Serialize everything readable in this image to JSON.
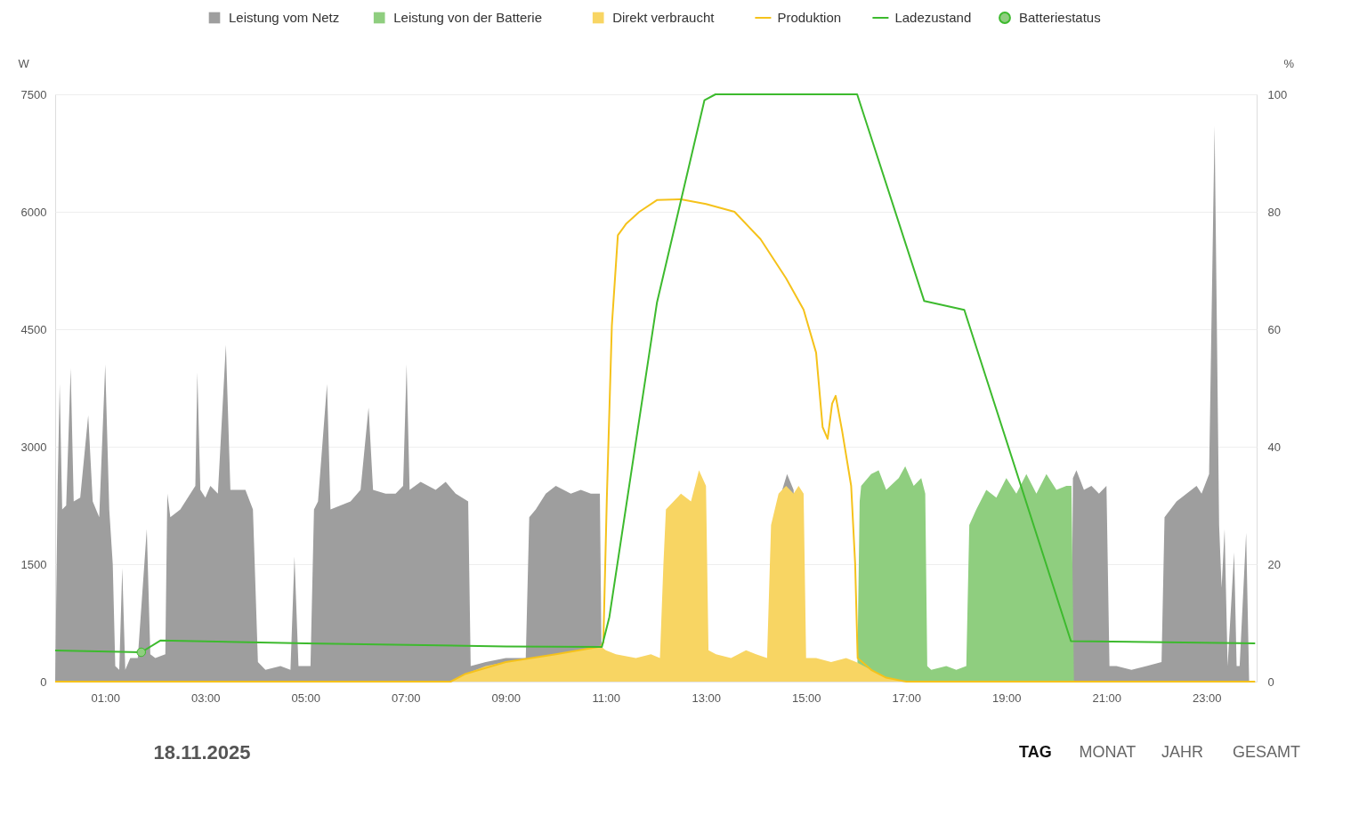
{
  "chart_data": {
    "type": "area",
    "ylabel": "W",
    "y2label": "%",
    "legend": "top",
    "grid": "y",
    "xlim": [
      0,
      24
    ],
    "xticks": [
      {
        "value": 1,
        "label": "01:00"
      },
      {
        "value": 3,
        "label": "03:00"
      },
      {
        "value": 5,
        "label": "05:00"
      },
      {
        "value": 7,
        "label": "07:00"
      },
      {
        "value": 9,
        "label": "09:00"
      },
      {
        "value": 11,
        "label": "11:00"
      },
      {
        "value": 13,
        "label": "13:00"
      },
      {
        "value": 15,
        "label": "15:00"
      },
      {
        "value": 17,
        "label": "17:00"
      },
      {
        "value": 19,
        "label": "19:00"
      },
      {
        "value": 21,
        "label": "21:00"
      },
      {
        "value": 23,
        "label": "23:00"
      }
    ],
    "ylim": [
      0,
      7500
    ],
    "yticks": [
      0,
      1500,
      3000,
      4500,
      6000,
      7500
    ],
    "y2lim": [
      0,
      100
    ],
    "y2ticks": [
      0,
      20,
      40,
      60,
      80,
      100
    ],
    "annotations": [
      "18.11.2025",
      "TAG",
      "MONAT",
      "JAHR",
      "GESAMT"
    ],
    "series": [
      {
        "name": "Leistung vom Netz",
        "color": "#9e9e9e",
        "x": [
          0,
          0.05,
          0.09,
          0.14,
          0.22,
          0.31,
          0.37,
          0.5,
          0.66,
          0.75,
          0.88,
          1.0,
          1.08,
          1.15,
          1.2,
          1.28,
          1.34,
          1.4,
          1.5,
          1.65,
          1.83,
          1.9,
          2.0,
          2.2,
          2.24,
          2.3,
          2.5,
          2.65,
          2.8,
          2.84,
          2.9,
          3.0,
          3.1,
          3.25,
          3.41,
          3.5,
          3.8,
          3.95,
          4.05,
          4.2,
          4.5,
          4.7,
          4.78,
          4.86,
          5.1,
          5.17,
          5.25,
          5.43,
          5.5,
          5.7,
          5.9,
          6.1,
          6.26,
          6.35,
          6.6,
          6.8,
          6.95,
          7.02,
          7.08,
          7.3,
          7.6,
          7.8,
          8.0,
          8.25,
          8.3,
          8.6,
          9.0,
          9.4,
          9.47,
          9.6,
          9.8,
          10.0,
          10.3,
          10.5,
          10.7,
          10.88,
          10.92,
          14.4,
          14.5,
          14.62,
          14.75,
          14.85,
          20.3,
          20.33,
          20.4,
          20.55,
          20.7,
          20.85,
          21.0,
          21.06,
          21.2,
          21.5,
          21.8,
          22.1,
          22.16,
          22.4,
          22.6,
          22.8,
          22.9,
          23.05,
          23.16,
          23.25,
          23.3,
          23.36,
          23.42,
          23.55,
          23.6,
          23.66,
          23.79,
          23.85
        ],
        "values": [
          0,
          2500,
          3800,
          2200,
          2250,
          4000,
          2300,
          2350,
          3400,
          2300,
          2100,
          4050,
          2200,
          1500,
          200,
          150,
          1450,
          150,
          300,
          300,
          1950,
          350,
          300,
          350,
          2400,
          2100,
          2200,
          2350,
          2500,
          3950,
          2450,
          2350,
          2500,
          2400,
          4300,
          2450,
          2450,
          2200,
          250,
          150,
          200,
          150,
          1600,
          200,
          200,
          2200,
          2300,
          3800,
          2200,
          2250,
          2300,
          2450,
          3500,
          2450,
          2400,
          2400,
          2500,
          4050,
          2450,
          2550,
          2450,
          2550,
          2400,
          2300,
          200,
          250,
          300,
          300,
          2100,
          2200,
          2400,
          2500,
          2400,
          2450,
          2400,
          2400,
          0,
          0,
          2400,
          2650,
          2450,
          0,
          0,
          2600,
          2700,
          2450,
          2500,
          2400,
          2500,
          200,
          200,
          150,
          200,
          250,
          2100,
          2300,
          2400,
          2500,
          2400,
          2650,
          7100,
          2000,
          1200,
          1950,
          200,
          1650,
          200,
          200,
          1900,
          0
        ]
      },
      {
        "name": "Leistung von der Batterie",
        "color": "#8fce7f",
        "x": [
          16.02,
          16.07,
          16.1,
          16.3,
          16.45,
          16.6,
          16.85,
          16.98,
          17.15,
          17.3,
          17.38,
          17.42,
          17.5,
          17.8,
          18.0,
          18.2,
          18.26,
          18.4,
          18.6,
          18.8,
          19.0,
          19.2,
          19.4,
          19.6,
          19.8,
          20.0,
          20.2,
          20.3,
          20.35
        ],
        "values": [
          0,
          2300,
          2500,
          2650,
          2700,
          2450,
          2600,
          2750,
          2500,
          2600,
          2400,
          200,
          150,
          200,
          150,
          200,
          2000,
          2200,
          2450,
          2350,
          2600,
          2400,
          2650,
          2400,
          2650,
          2450,
          2500,
          2500,
          0
        ]
      },
      {
        "name": "Direkt verbraucht",
        "color": "#f8d563",
        "x": [
          7.9,
          8.2,
          8.6,
          9.0,
          9.5,
          10.0,
          10.5,
          10.9,
          11.0,
          11.2,
          11.6,
          11.9,
          12.08,
          12.15,
          12.2,
          12.5,
          12.7,
          12.86,
          13.0,
          13.05,
          13.2,
          13.5,
          13.8,
          14.0,
          14.22,
          14.3,
          14.45,
          14.6,
          14.75,
          14.85,
          14.95,
          15.0,
          15.2,
          15.5,
          15.8,
          16.0,
          16.3,
          16.6,
          17.0
        ],
        "values": [
          0,
          100,
          200,
          250,
          300,
          350,
          400,
          450,
          400,
          350,
          300,
          350,
          300,
          1500,
          2200,
          2400,
          2300,
          2700,
          2500,
          400,
          350,
          300,
          400,
          350,
          300,
          2000,
          2400,
          2500,
          2400,
          2500,
          2400,
          300,
          300,
          250,
          300,
          250,
          150,
          50,
          0
        ]
      },
      {
        "name": "Produktion",
        "type": "line",
        "color": "#f5c21b",
        "x": [
          0,
          7.9,
          8.2,
          9.0,
          10.0,
          10.9,
          10.95,
          11.02,
          11.12,
          11.24,
          11.41,
          11.67,
          12.02,
          12.5,
          13.0,
          13.57,
          14.09,
          14.6,
          14.95,
          15.2,
          15.33,
          15.43,
          15.52,
          15.59,
          15.72,
          15.9,
          15.98,
          16.03,
          16.3,
          16.6,
          17.0,
          23.97
        ],
        "values": [
          0,
          0,
          100,
          250,
          350,
          450,
          500,
          2350,
          4550,
          5700,
          5850,
          6000,
          6150,
          6160,
          6100,
          6000,
          5650,
          5150,
          4750,
          4200,
          3250,
          3100,
          3550,
          3650,
          3200,
          2500,
          1500,
          300,
          150,
          50,
          0,
          0
        ]
      },
      {
        "name": "Ladezustand",
        "type": "line",
        "axis": "y2",
        "color": "#3dba2e",
        "x": [
          0,
          1.72,
          2.1,
          5.0,
          9.0,
          10.92,
          11.07,
          12.02,
          12.97,
          13.19,
          16.02,
          17.36,
          18.16,
          20.29,
          23.97
        ],
        "values": [
          5.3,
          5.0,
          7.0,
          6.5,
          6.0,
          5.9,
          11,
          64.5,
          99,
          100,
          100,
          64.8,
          63.3,
          6.9,
          6.5
        ]
      },
      {
        "name": "Batteriestatus",
        "type": "scatter",
        "axis": "y2",
        "marker": "circle",
        "color": "#8fce7f",
        "x": [
          1.72
        ],
        "values": [
          5.0
        ]
      }
    ]
  }
}
